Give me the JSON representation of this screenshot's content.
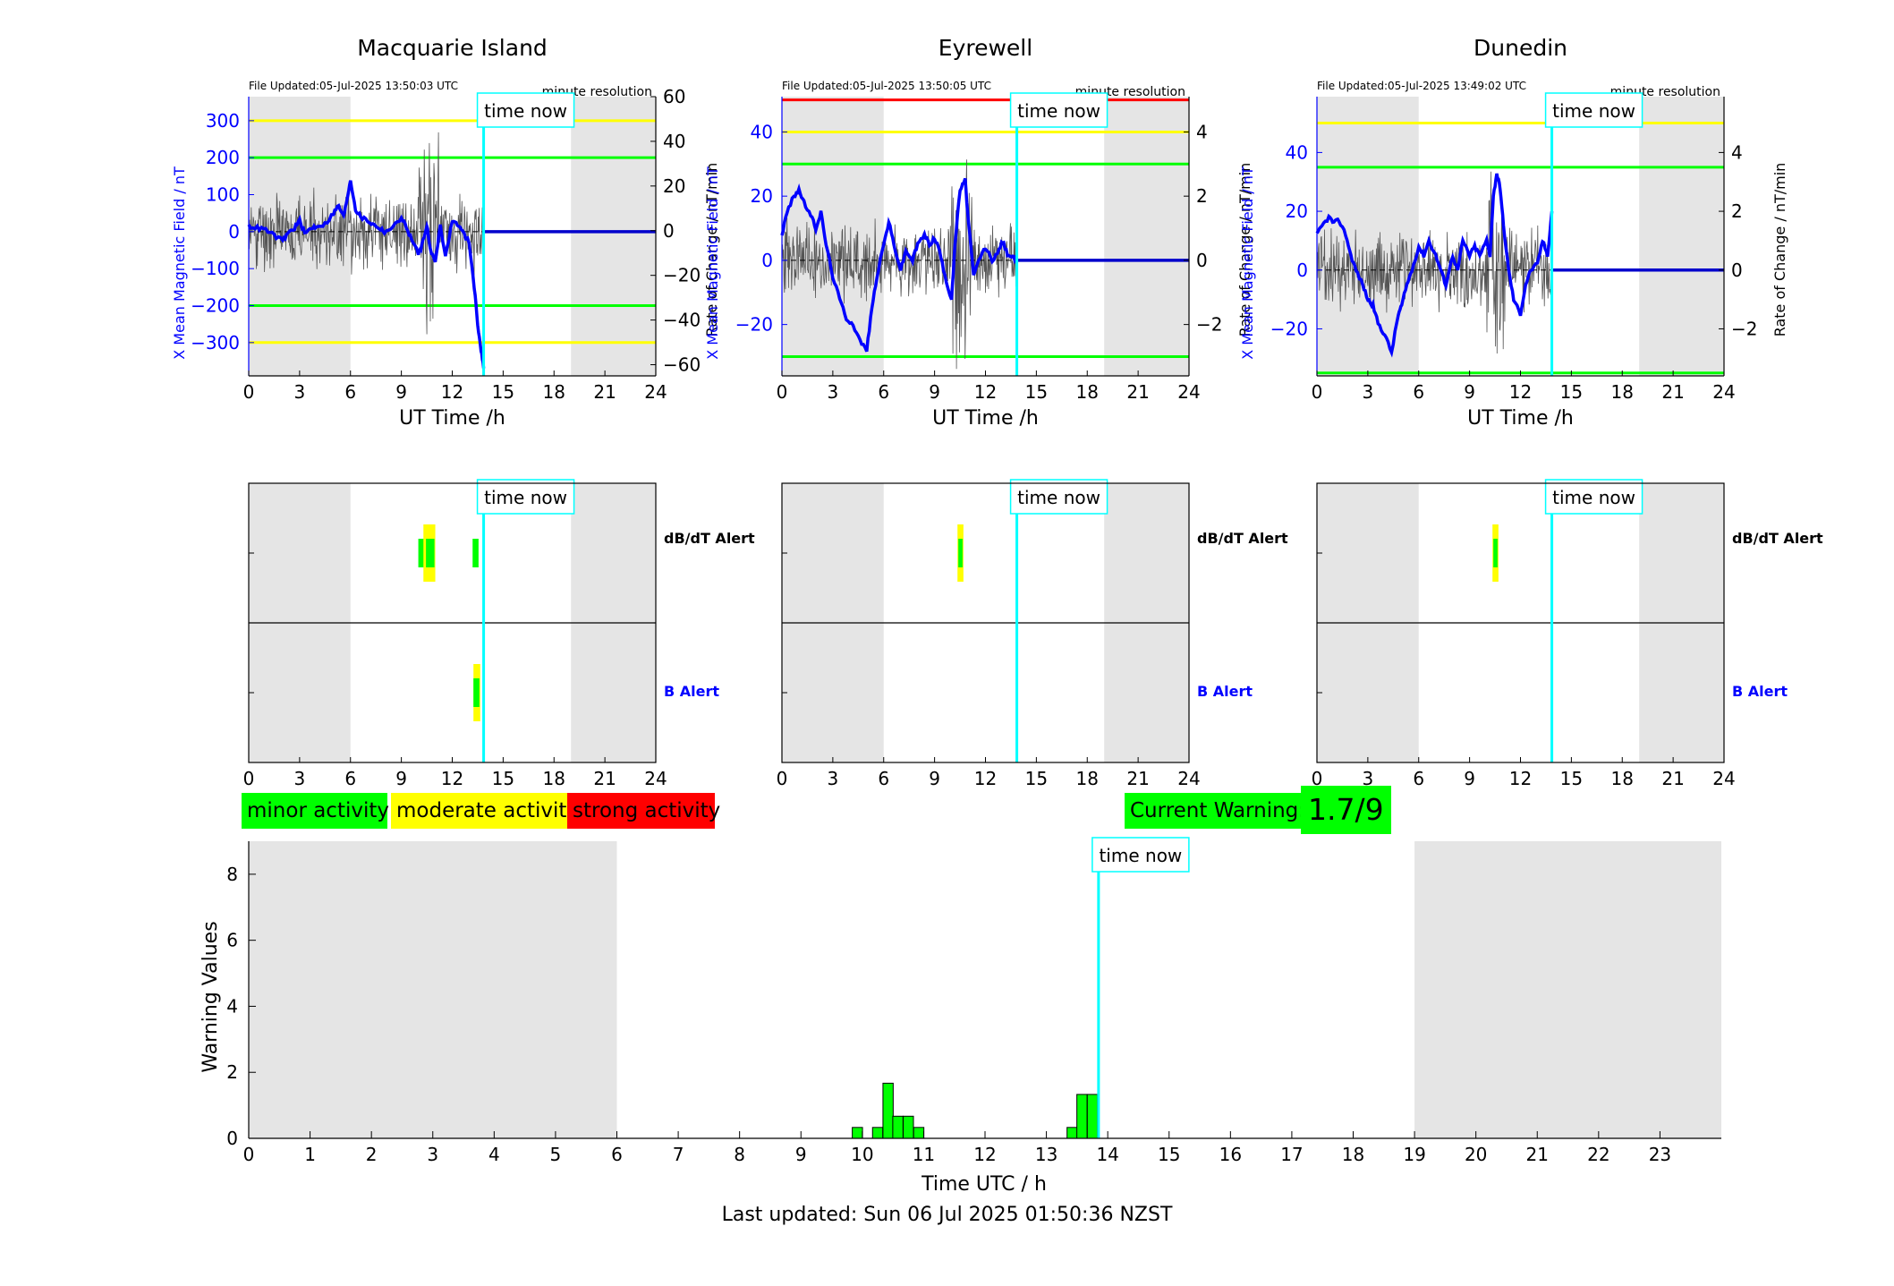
{
  "stations": [
    {
      "name": "Macquarie Island",
      "file_updated": "File Updated:05-Jul-2025 13:50:03 UTC",
      "resolution": "minute resolution",
      "y_ticks": [
        -300,
        -200,
        -100,
        0,
        100,
        200,
        300
      ],
      "y_lim": [
        -390,
        365
      ],
      "rate_ticks": [
        -60,
        -40,
        -20,
        0,
        20,
        40,
        60
      ],
      "rate_lim": [
        -65,
        60
      ],
      "threshold_lines": [
        {
          "value": 300,
          "color": "#ffff00"
        },
        {
          "value": 200,
          "color": "#00ff00"
        },
        {
          "value": -200,
          "color": "#00ff00"
        },
        {
          "value": -300,
          "color": "#ffff00"
        }
      ],
      "x_series": {
        "t": [
          0,
          0.5,
          1,
          1.5,
          2,
          2.3,
          2.7,
          3,
          3.3,
          3.7,
          4,
          4.5,
          5,
          5.3,
          5.6,
          5.8,
          6,
          6.3,
          6.6,
          7,
          7.3,
          7.7,
          8,
          8.5,
          9,
          9.3,
          9.6,
          10,
          10.2,
          10.5,
          10.7,
          11,
          11.3,
          11.6,
          12,
          12.3,
          12.6,
          13,
          13.3,
          13.5,
          13.7,
          13.85
        ],
        "v": [
          15,
          10,
          5,
          -10,
          -25,
          -5,
          10,
          30,
          -5,
          10,
          15,
          20,
          50,
          70,
          40,
          90,
          140,
          60,
          40,
          30,
          20,
          10,
          0,
          10,
          40,
          10,
          -20,
          -60,
          -40,
          20,
          -50,
          -80,
          20,
          -70,
          30,
          20,
          0,
          -30,
          -150,
          -250,
          -320,
          -370
        ]
      },
      "rate_noise_seed": 11,
      "activity": {
        "dbdt": [
          {
            "t0": 10.0,
            "t1": 10.45,
            "level": "green"
          },
          {
            "t0": 10.3,
            "t1": 11.0,
            "level": "yellow"
          },
          {
            "t0": 10.45,
            "t1": 10.95,
            "level": "green"
          },
          {
            "t0": 13.2,
            "t1": 13.55,
            "level": "green"
          }
        ],
        "b": [
          {
            "t0": 13.25,
            "t1": 13.65,
            "level": "yellow"
          },
          {
            "t0": 13.25,
            "t1": 13.6,
            "level": "green"
          }
        ]
      }
    },
    {
      "name": "Eyrewell",
      "file_updated": "File Updated:05-Jul-2025 13:50:05 UTC",
      "resolution": "minute resolution",
      "y_ticks": [
        -20,
        0,
        20,
        40
      ],
      "y_lim": [
        -36,
        51
      ],
      "rate_ticks": [
        -2,
        0,
        2,
        4
      ],
      "rate_lim": [
        -3.6,
        5.1
      ],
      "threshold_lines": [
        {
          "value": 50,
          "color": "#ff0000"
        },
        {
          "value": 40,
          "color": "#ffff00"
        },
        {
          "value": 30,
          "color": "#00ff00"
        },
        {
          "value": -30,
          "color": "#00ff00"
        }
      ],
      "x_series": {
        "t": [
          0,
          0.3,
          0.7,
          1,
          1.3,
          1.7,
          2,
          2.3,
          2.6,
          3,
          3.4,
          3.8,
          4.2,
          4.6,
          5,
          5.3,
          5.6,
          6,
          6.3,
          6.6,
          7,
          7.3,
          7.7,
          8,
          8.4,
          8.7,
          9,
          9.3,
          9.6,
          10,
          10.2,
          10.5,
          10.8,
          11,
          11.3,
          11.6,
          12,
          12.4,
          12.8,
          13,
          13.3,
          13.6,
          13.85
        ],
        "v": [
          8,
          15,
          20,
          22,
          18,
          14,
          10,
          15,
          5,
          -5,
          -12,
          -18,
          -20,
          -25,
          -28,
          -15,
          -5,
          5,
          12,
          5,
          -3,
          3,
          0,
          5,
          8,
          5,
          7,
          3,
          -5,
          -12,
          5,
          22,
          25,
          12,
          -5,
          0,
          4,
          0,
          3,
          6,
          2,
          1,
          0
        ]
      },
      "rate_noise_seed": 23,
      "activity": {
        "dbdt": [
          {
            "t0": 10.35,
            "t1": 10.7,
            "level": "yellow"
          },
          {
            "t0": 10.4,
            "t1": 10.65,
            "level": "green"
          }
        ],
        "b": []
      }
    },
    {
      "name": "Dunedin",
      "file_updated": "File Updated:05-Jul-2025 13:49:02 UTC",
      "resolution": "minute resolution",
      "y_ticks": [
        -20,
        0,
        20,
        40
      ],
      "y_lim": [
        -36,
        59
      ],
      "rate_ticks": [
        -2,
        0,
        2,
        4
      ],
      "rate_lim": [
        -3.6,
        5.9
      ],
      "threshold_lines": [
        {
          "value": 50,
          "color": "#ffff00"
        },
        {
          "value": 35,
          "color": "#00ff00"
        },
        {
          "value": -35,
          "color": "#00ff00"
        }
      ],
      "x_series": {
        "t": [
          0,
          0.3,
          0.7,
          1,
          1.3,
          1.7,
          2,
          2.3,
          2.7,
          3,
          3.3,
          3.6,
          4,
          4.4,
          4.8,
          5,
          5.3,
          5.6,
          6,
          6.3,
          6.6,
          7,
          7.3,
          7.6,
          8,
          8.3,
          8.6,
          9,
          9.3,
          9.6,
          10,
          10.2,
          10.4,
          10.6,
          10.8,
          11,
          11.3,
          11.6,
          12,
          12.3,
          12.6,
          13,
          13.3,
          13.6,
          13.85
        ],
        "v": [
          12,
          15,
          18,
          16,
          17,
          12,
          5,
          0,
          -5,
          -10,
          -12,
          -18,
          -22,
          -28,
          -15,
          -12,
          -5,
          0,
          8,
          5,
          10,
          5,
          0,
          -5,
          5,
          0,
          10,
          5,
          8,
          5,
          10,
          5,
          25,
          33,
          28,
          15,
          0,
          -10,
          -15,
          -5,
          0,
          2,
          10,
          5,
          20
        ]
      },
      "rate_noise_seed": 37,
      "activity": {
        "dbdt": [
          {
            "t0": 10.35,
            "t1": 10.7,
            "level": "yellow"
          },
          {
            "t0": 10.4,
            "t1": 10.65,
            "level": "green"
          }
        ],
        "b": []
      }
    }
  ],
  "common": {
    "x_ticks": [
      0,
      3,
      6,
      9,
      12,
      15,
      18,
      21,
      24
    ],
    "x_label": "UT Time /h",
    "y_label": "X Mean Magnetic Field / nT",
    "rate_label": "Rate of Change / nT/min",
    "time_now_label": "time now",
    "time_now_utc": 13.85,
    "night_bands": [
      [
        0,
        6
      ],
      [
        19,
        24
      ]
    ],
    "dbdt_label": "dB/dT Alert",
    "b_label": "B Alert"
  },
  "legend": {
    "minor": "minor activity",
    "moderate": "moderate activity",
    "strong": "strong activity"
  },
  "current_warning": {
    "label": "Current Warning:",
    "value": "1.7/9"
  },
  "chart_data": {
    "type": "bar",
    "xlabel": "Time UTC / h",
    "ylabel": "Warning Values",
    "xlim": [
      0,
      24
    ],
    "ylim": [
      0,
      9
    ],
    "x_ticks": [
      0,
      1,
      2,
      3,
      4,
      5,
      6,
      7,
      8,
      9,
      10,
      11,
      12,
      13,
      14,
      15,
      16,
      17,
      18,
      19,
      20,
      21,
      22,
      23
    ],
    "y_ticks": [
      0,
      2,
      4,
      6,
      8
    ],
    "night_bands": [
      [
        0,
        6
      ],
      [
        19,
        24
      ]
    ],
    "bar_width_h": 0.1667,
    "bars": [
      {
        "x": 9.92,
        "value": 0.33
      },
      {
        "x": 10.25,
        "value": 0.33
      },
      {
        "x": 10.42,
        "value": 1.67
      },
      {
        "x": 10.58,
        "value": 0.67
      },
      {
        "x": 10.75,
        "value": 0.67
      },
      {
        "x": 10.92,
        "value": 0.33
      },
      {
        "x": 13.42,
        "value": 0.33
      },
      {
        "x": 13.58,
        "value": 1.33
      },
      {
        "x": 13.75,
        "value": 1.33
      }
    ],
    "time_now_label": "time now",
    "time_now_utc": 13.85
  },
  "footer": "Last updated: Sun 06 Jul 2025 01:50:36 NZST"
}
